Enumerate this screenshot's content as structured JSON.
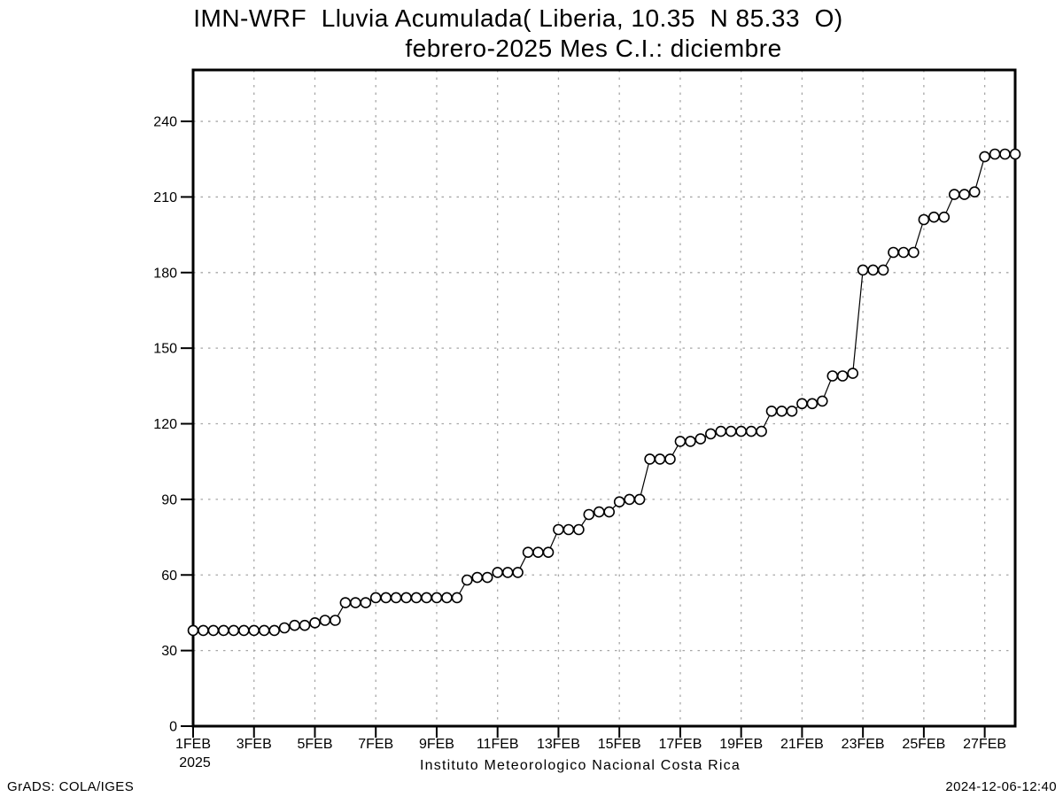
{
  "header": {
    "app": "GrADS plot"
  },
  "footer": {
    "left": "GrADS: COLA/IGES",
    "right": "2024-12-06-12:40"
  },
  "chart_data": {
    "type": "line",
    "title": "IMN-WRF  Lluvia Acumulada( Liberia, 10.35  N 85.33  O)",
    "subtitle": "febrero-2025 Mes C.I.: diciembre",
    "xlabel": "Instituto Meteorologico Nacional Costa Rica",
    "ylabel": "",
    "x_year_label": "2025",
    "xlim": [
      1,
      28
    ],
    "ylim": [
      0,
      260.4
    ],
    "y_ticks": [
      0,
      30,
      60,
      90,
      120,
      150,
      180,
      210,
      240
    ],
    "x_ticks": [
      {
        "day": 1,
        "label": "1FEB"
      },
      {
        "day": 3,
        "label": "3FEB"
      },
      {
        "day": 5,
        "label": "5FEB"
      },
      {
        "day": 7,
        "label": "7FEB"
      },
      {
        "day": 9,
        "label": "9FEB"
      },
      {
        "day": 11,
        "label": "11FEB"
      },
      {
        "day": 13,
        "label": "13FEB"
      },
      {
        "day": 15,
        "label": "15FEB"
      },
      {
        "day": 17,
        "label": "17FEB"
      },
      {
        "day": 19,
        "label": "19FEB"
      },
      {
        "day": 21,
        "label": "21FEB"
      },
      {
        "day": 23,
        "label": "23FEB"
      },
      {
        "day": 25,
        "label": "25FEB"
      },
      {
        "day": 27,
        "label": "27FEB"
      }
    ],
    "grid_x_days": [
      3,
      5,
      7,
      9,
      11,
      13,
      15,
      17,
      19,
      21,
      23,
      25,
      27
    ],
    "grid_y_values": [
      30,
      60,
      90,
      120,
      150,
      180,
      210,
      240
    ],
    "grid_on": true,
    "legend": "none",
    "marker": "open-circle",
    "colors": {
      "line": "#000000",
      "marker_fill": "#ffffff",
      "grid": "#a6a6a6",
      "frame": "#000000",
      "background": "#ffffff"
    },
    "series": [
      {
        "name": "Lluvia acumulada (mm), febrero 2025",
        "points_per_day": 3,
        "x_start_day": 1,
        "values": [
          38,
          38,
          38,
          38,
          38,
          38,
          38,
          38,
          38,
          39,
          40,
          40,
          41,
          42,
          42,
          49,
          49,
          49,
          51,
          51,
          51,
          51,
          51,
          51,
          51,
          51,
          51,
          58,
          59,
          59,
          61,
          61,
          61,
          69,
          69,
          69,
          78,
          78,
          78,
          84,
          85,
          85,
          89,
          90,
          90,
          106,
          106,
          106,
          113,
          113,
          114,
          116,
          117,
          117,
          117,
          117,
          117,
          125,
          125,
          125,
          128,
          128,
          129,
          139,
          139,
          140,
          181,
          181,
          181,
          188,
          188,
          188,
          201,
          202,
          202,
          211,
          211,
          212,
          226,
          227,
          227,
          227
        ]
      }
    ]
  }
}
